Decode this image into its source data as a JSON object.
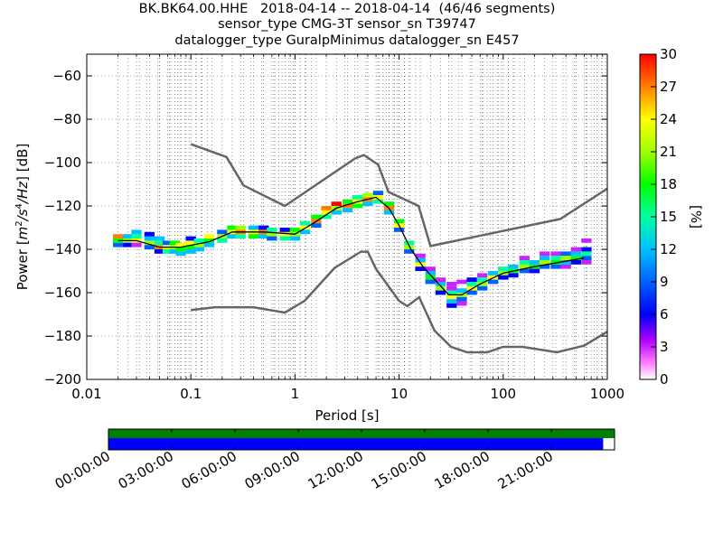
{
  "title": {
    "line1": "BK.BK64.00.HHE   2018-04-14 -- 2018-04-14  (46/46 segments)",
    "line2": "sensor_type CMG-3T sensor_sn T39747",
    "line3": "datalogger_type GuralpMinimus datalogger_sn E457"
  },
  "chart_data": {
    "type": "heatmap",
    "xlabel": "Period [s]",
    "ylabel": "Power [m²/s⁴/Hz] [dB]",
    "ylabel_parts": {
      "prefix": "Power [",
      "unit_m": "m",
      "unit_m_exp": "2",
      "unit_s": "/s",
      "unit_s_exp": "4",
      "unit_hz": "/Hz",
      "suffix": "] [dB]"
    },
    "x_scale": "log",
    "xlim": [
      0.01,
      1000
    ],
    "ylim": [
      -200,
      -50
    ],
    "x_ticks": [
      {
        "value": 0.01,
        "label": "0.01"
      },
      {
        "value": 0.1,
        "label": "0.1"
      },
      {
        "value": 1,
        "label": "1"
      },
      {
        "value": 10,
        "label": "10"
      },
      {
        "value": 100,
        "label": "100"
      },
      {
        "value": 1000,
        "label": "1000"
      }
    ],
    "y_ticks": [
      {
        "value": -60,
        "label": "−60"
      },
      {
        "value": -80,
        "label": "−80"
      },
      {
        "value": -100,
        "label": "−100"
      },
      {
        "value": -120,
        "label": "−120"
      },
      {
        "value": -140,
        "label": "−140"
      },
      {
        "value": -160,
        "label": "−160"
      },
      {
        "value": -180,
        "label": "−180"
      },
      {
        "value": -200,
        "label": "−200"
      }
    ],
    "grid": "dotted, vertical at period bins and y ticks",
    "colorbar": {
      "label": "[%]",
      "range": [
        0,
        30
      ],
      "ticks": [
        "0",
        "3",
        "6",
        "9",
        "12",
        "15",
        "18",
        "21",
        "24",
        "27",
        "30"
      ]
    },
    "noise_models": [
      {
        "name": "high",
        "points": [
          [
            0.1,
            -91.5
          ],
          [
            0.22,
            -97.4
          ],
          [
            0.32,
            -110.5
          ],
          [
            0.8,
            -120
          ],
          [
            3.8,
            -98
          ],
          [
            4.6,
            -96.5
          ],
          [
            6.3,
            -101
          ],
          [
            7.9,
            -113.5
          ],
          [
            15.4,
            -120
          ],
          [
            20,
            -138.5
          ],
          [
            354,
            -126
          ],
          [
            1000,
            -112
          ]
        ]
      },
      {
        "name": "low",
        "points": [
          [
            0.1,
            -168
          ],
          [
            0.17,
            -166.7
          ],
          [
            0.4,
            -166.7
          ],
          [
            0.8,
            -169.2
          ],
          [
            1.24,
            -163.7
          ],
          [
            2.4,
            -148.6
          ],
          [
            4.3,
            -141.1
          ],
          [
            5.0,
            -141.1
          ],
          [
            6.0,
            -149
          ],
          [
            10.0,
            -163.8
          ],
          [
            12.0,
            -166.2
          ],
          [
            15.6,
            -162.1
          ],
          [
            21.9,
            -177.5
          ],
          [
            31.6,
            -185
          ],
          [
            45,
            -187.5
          ],
          [
            70,
            -187.5
          ],
          [
            100,
            -185
          ],
          [
            154,
            -185
          ],
          [
            328,
            -187.5
          ],
          [
            600,
            -184.4
          ],
          [
            1000,
            -178
          ]
        ]
      }
    ],
    "mean_curve": [
      [
        0.02,
        -136
      ],
      [
        0.03,
        -136
      ],
      [
        0.05,
        -139
      ],
      [
        0.08,
        -139
      ],
      [
        0.15,
        -136.5
      ],
      [
        0.25,
        -132
      ],
      [
        0.5,
        -132
      ],
      [
        1,
        -133
      ],
      [
        1.5,
        -128
      ],
      [
        2.5,
        -121
      ],
      [
        4,
        -118
      ],
      [
        6,
        -116
      ],
      [
        8,
        -121
      ],
      [
        10,
        -129
      ],
      [
        13,
        -140
      ],
      [
        17,
        -148
      ],
      [
        22,
        -154
      ],
      [
        30,
        -161
      ],
      [
        40,
        -161
      ],
      [
        60,
        -156
      ],
      [
        100,
        -151
      ],
      [
        200,
        -148
      ],
      [
        600,
        -144
      ]
    ],
    "heat_cells": [
      [
        0.02,
        -136,
        18
      ],
      [
        0.02,
        -138,
        9
      ],
      [
        0.02,
        -134,
        27
      ],
      [
        0.025,
        -136,
        21
      ],
      [
        0.025,
        -138,
        6
      ],
      [
        0.025,
        -134,
        12
      ],
      [
        0.03,
        -136,
        24
      ],
      [
        0.03,
        -134,
        15
      ],
      [
        0.03,
        -138,
        3
      ],
      [
        0.03,
        -132,
        12
      ],
      [
        0.04,
        -137,
        21
      ],
      [
        0.04,
        -135,
        12
      ],
      [
        0.04,
        -139,
        9
      ],
      [
        0.04,
        -133,
        6
      ],
      [
        0.05,
        -139,
        27
      ],
      [
        0.05,
        -137,
        15
      ],
      [
        0.05,
        -141,
        6
      ],
      [
        0.05,
        -135,
        12
      ],
      [
        0.06,
        -139,
        24
      ],
      [
        0.06,
        -141,
        15
      ],
      [
        0.06,
        -137,
        9
      ],
      [
        0.07,
        -139,
        21
      ],
      [
        0.07,
        -141,
        12
      ],
      [
        0.07,
        -137,
        18
      ],
      [
        0.08,
        -140,
        18
      ],
      [
        0.08,
        -138,
        24
      ],
      [
        0.08,
        -142,
        12
      ],
      [
        0.1,
        -139,
        18
      ],
      [
        0.1,
        -137,
        24
      ],
      [
        0.1,
        -141,
        12
      ],
      [
        0.1,
        -135,
        6
      ],
      [
        0.12,
        -138,
        21
      ],
      [
        0.12,
        -136,
        15
      ],
      [
        0.12,
        -140,
        12
      ],
      [
        0.15,
        -136,
        18
      ],
      [
        0.15,
        -138,
        12
      ],
      [
        0.15,
        -134,
        24
      ],
      [
        0.2,
        -134,
        21
      ],
      [
        0.2,
        -136,
        15
      ],
      [
        0.2,
        -132,
        9
      ],
      [
        0.25,
        -132,
        24
      ],
      [
        0.25,
        -130,
        18
      ],
      [
        0.25,
        -134,
        12
      ],
      [
        0.3,
        -132,
        27
      ],
      [
        0.3,
        -130,
        21
      ],
      [
        0.3,
        -134,
        15
      ],
      [
        0.4,
        -132,
        24
      ],
      [
        0.4,
        -130,
        12
      ],
      [
        0.4,
        -134,
        18
      ],
      [
        0.5,
        -132,
        27
      ],
      [
        0.5,
        -134,
        12
      ],
      [
        0.5,
        -130,
        6
      ],
      [
        0.6,
        -133,
        21
      ],
      [
        0.6,
        -131,
        15
      ],
      [
        0.6,
        -135,
        9
      ],
      [
        0.8,
        -133,
        24
      ],
      [
        0.8,
        -135,
        15
      ],
      [
        0.8,
        -131,
        6
      ],
      [
        1.0,
        -133,
        21
      ],
      [
        1.0,
        -135,
        12
      ],
      [
        1.0,
        -131,
        18
      ],
      [
        1.25,
        -130,
        24
      ],
      [
        1.25,
        -128,
        15
      ],
      [
        1.25,
        -132,
        12
      ],
      [
        1.6,
        -127,
        27
      ],
      [
        1.6,
        -125,
        18
      ],
      [
        1.6,
        -129,
        9
      ],
      [
        2.0,
        -123,
        24
      ],
      [
        2.0,
        -121,
        27
      ],
      [
        2.0,
        -125,
        15
      ],
      [
        2.5,
        -121,
        21
      ],
      [
        2.5,
        -119,
        30
      ],
      [
        2.5,
        -123,
        12
      ],
      [
        3.2,
        -120,
        27
      ],
      [
        3.2,
        -118,
        18
      ],
      [
        3.2,
        -122,
        12
      ],
      [
        4.0,
        -118,
        24
      ],
      [
        4.0,
        -116,
        15
      ],
      [
        4.0,
        -120,
        18
      ],
      [
        5.0,
        -117,
        27
      ],
      [
        5.0,
        -115,
        21
      ],
      [
        5.0,
        -119,
        12
      ],
      [
        6.3,
        -116,
        24
      ],
      [
        6.3,
        -118,
        15
      ],
      [
        6.3,
        -114,
        9
      ],
      [
        8.0,
        -121,
        27
      ],
      [
        8.0,
        -119,
        18
      ],
      [
        8.0,
        -123,
        12
      ],
      [
        10,
        -129,
        24
      ],
      [
        10,
        -127,
        18
      ],
      [
        10,
        -131,
        9
      ],
      [
        12.5,
        -139,
        21
      ],
      [
        12.5,
        -137,
        15
      ],
      [
        12.5,
        -141,
        9
      ],
      [
        16,
        -147,
        24
      ],
      [
        16,
        -145,
        12
      ],
      [
        16,
        -149,
        6
      ],
      [
        16,
        -143,
        3
      ],
      [
        20,
        -153,
        18
      ],
      [
        20,
        -151,
        12
      ],
      [
        20,
        -155,
        9
      ],
      [
        20,
        -149,
        3
      ],
      [
        25,
        -158,
        21
      ],
      [
        25,
        -156,
        12
      ],
      [
        25,
        -160,
        6
      ],
      [
        25,
        -154,
        3
      ],
      [
        32,
        -162,
        24
      ],
      [
        32,
        -160,
        15
      ],
      [
        32,
        -164,
        12
      ],
      [
        32,
        -166,
        6
      ],
      [
        32,
        -158,
        3
      ],
      [
        32,
        -156,
        3
      ],
      [
        40,
        -161,
        21
      ],
      [
        40,
        -159,
        12
      ],
      [
        40,
        -163,
        9
      ],
      [
        40,
        -155,
        3
      ],
      [
        40,
        -165,
        3
      ],
      [
        50,
        -158,
        24
      ],
      [
        50,
        -156,
        15
      ],
      [
        50,
        -160,
        9
      ],
      [
        50,
        -154,
        6
      ],
      [
        63,
        -156,
        21
      ],
      [
        63,
        -154,
        15
      ],
      [
        63,
        -158,
        9
      ],
      [
        63,
        -152,
        3
      ],
      [
        80,
        -153,
        24
      ],
      [
        80,
        -151,
        12
      ],
      [
        80,
        -155,
        9
      ],
      [
        100,
        -151,
        21
      ],
      [
        100,
        -149,
        15
      ],
      [
        100,
        -153,
        6
      ],
      [
        125,
        -150,
        18
      ],
      [
        125,
        -148,
        12
      ],
      [
        125,
        -152,
        6
      ],
      [
        160,
        -148,
        21
      ],
      [
        160,
        -146,
        15
      ],
      [
        160,
        -150,
        9
      ],
      [
        160,
        -144,
        3
      ],
      [
        200,
        -148,
        18
      ],
      [
        200,
        -146,
        12
      ],
      [
        200,
        -150,
        6
      ],
      [
        250,
        -146,
        21
      ],
      [
        250,
        -144,
        12
      ],
      [
        250,
        -148,
        9
      ],
      [
        250,
        -142,
        3
      ],
      [
        320,
        -146,
        18
      ],
      [
        320,
        -144,
        15
      ],
      [
        320,
        -148,
        9
      ],
      [
        320,
        -142,
        3
      ],
      [
        400,
        -144,
        21
      ],
      [
        400,
        -146,
        12
      ],
      [
        400,
        -142,
        9
      ],
      [
        400,
        -148,
        3
      ],
      [
        500,
        -144,
        18
      ],
      [
        500,
        -142,
        12
      ],
      [
        500,
        -146,
        6
      ],
      [
        500,
        -140,
        3
      ],
      [
        630,
        -142,
        15
      ],
      [
        630,
        -144,
        9
      ],
      [
        630,
        -140,
        6
      ],
      [
        630,
        -146,
        3
      ],
      [
        630,
        -136,
        3
      ]
    ],
    "timeline": {
      "tick_labels": [
        "00:00:00",
        "03:00:00",
        "06:00:00",
        "09:00:00",
        "12:00:00",
        "15:00:00",
        "18:00:00",
        "21:00:00"
      ],
      "tick_hours": [
        0,
        3,
        6,
        9,
        12,
        15,
        18,
        21
      ],
      "range_hours": [
        0,
        24
      ],
      "data_available_fraction": 1.0,
      "segments_used_fraction": 0.9775,
      "colors": {
        "available": "#008000",
        "used": "#0000ff"
      }
    }
  }
}
